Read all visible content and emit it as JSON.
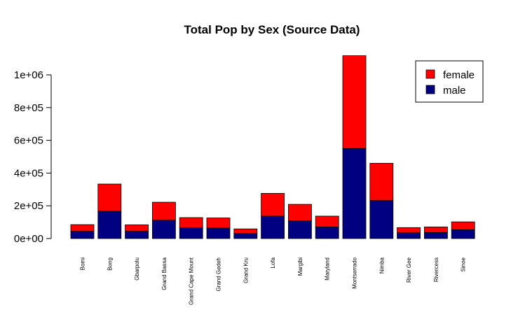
{
  "chart_data": {
    "type": "bar",
    "stacked": true,
    "title": "Total Pop by Sex (Source Data)",
    "xlabel": "",
    "ylabel": "",
    "categories": [
      "Bomi",
      "Bong",
      "Gbarpolu",
      "Grand Bassa",
      "Grand Cape Mount",
      "Grand Gedeh",
      "Grand Kru",
      "Lofa",
      "Margibi",
      "Maryland",
      "Montserrado",
      "Nimba",
      "River Gee",
      "Rivercess",
      "Sinoe"
    ],
    "series": [
      {
        "name": "male",
        "color": "#000080",
        "values": [
          44000,
          167000,
          44000,
          112000,
          66000,
          64000,
          31000,
          137000,
          108000,
          71000,
          550000,
          232000,
          35000,
          37000,
          54000
        ]
      },
      {
        "name": "female",
        "color": "#ff0000",
        "values": [
          41000,
          166000,
          40000,
          110000,
          62000,
          62000,
          28000,
          139000,
          101000,
          66000,
          567000,
          228000,
          32000,
          34000,
          48000
        ]
      }
    ],
    "ylim": [
      0,
      1200000
    ],
    "yticks": [
      0,
      200000,
      400000,
      600000,
      800000,
      1000000
    ],
    "ytick_labels": [
      "0e+00",
      "2e+05",
      "4e+05",
      "6e+05",
      "8e+05",
      "1e+06"
    ],
    "grid": false,
    "legend": {
      "position": "top-right",
      "entries": [
        "female",
        "male"
      ]
    }
  }
}
